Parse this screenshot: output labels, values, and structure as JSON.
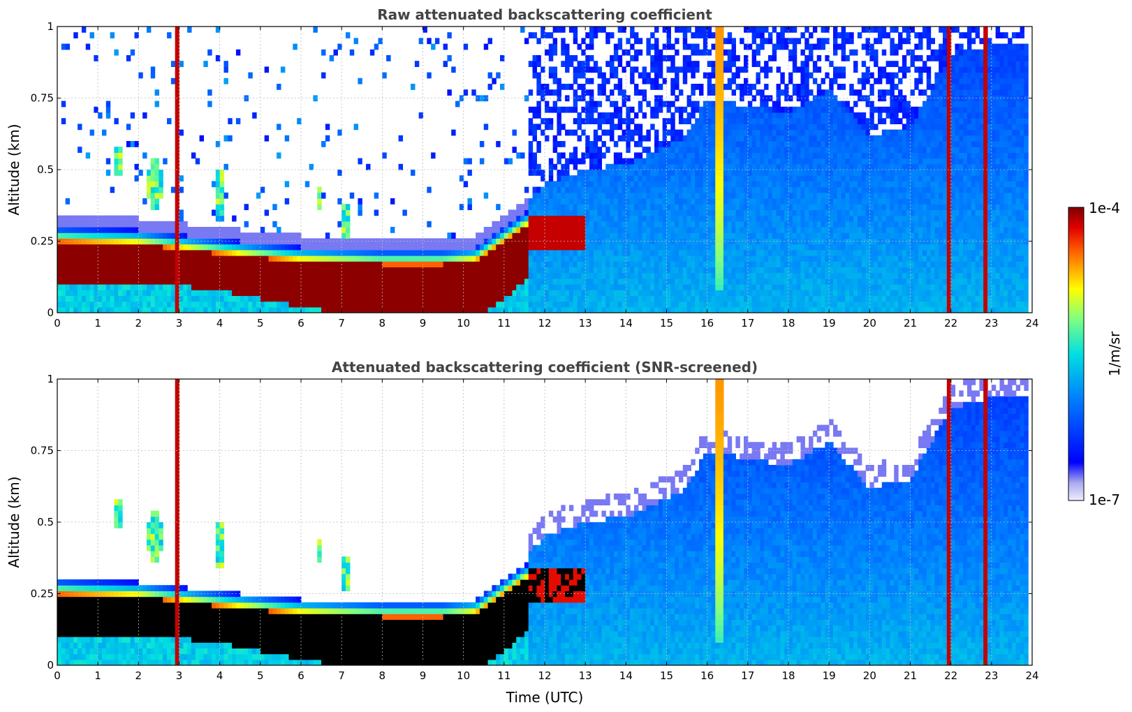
{
  "chart_data": [
    {
      "type": "heatmap",
      "title": "Raw attenuated backscattering coefficient",
      "ylabel": "Altitude (km)",
      "xlabel": "",
      "xlim": [
        0,
        24
      ],
      "ylim": [
        0,
        1
      ],
      "xticks": [
        "0",
        "1",
        "2",
        "3",
        "4",
        "5",
        "6",
        "7",
        "8",
        "9",
        "10",
        "11",
        "12",
        "13",
        "14",
        "15",
        "16",
        "17",
        "18",
        "19",
        "20",
        "21",
        "22",
        "23",
        "24"
      ],
      "yticks": [
        "0",
        "0.25",
        "0.5",
        "0.75",
        "1"
      ],
      "grid": true,
      "features": {
        "boundary_layer": [
          {
            "time": 0,
            "bottom_km": 0.1,
            "top_km": 0.23
          },
          {
            "time": 3,
            "bottom_km": 0.1,
            "top_km": 0.22
          },
          {
            "time": 5,
            "bottom_km": 0.05,
            "top_km": 0.18
          },
          {
            "time": 8,
            "bottom_km": 0.0,
            "top_km": 0.14
          },
          {
            "time": 10,
            "bottom_km": 0.0,
            "top_km": 0.15
          },
          {
            "time": 11.5,
            "bottom_km": 0.12,
            "top_km": 0.28
          }
        ],
        "precipitation_shafts_utc": [
          2.95,
          16.3,
          22.0,
          22.9
        ]
      }
    },
    {
      "type": "heatmap",
      "title": "Attenuated backscattering coefficient (SNR-screened)",
      "ylabel": "Altitude (km)",
      "xlabel": "Time (UTC)",
      "xlim": [
        0,
        24
      ],
      "ylim": [
        0,
        1
      ],
      "xticks": [
        "0",
        "1",
        "2",
        "3",
        "4",
        "5",
        "6",
        "7",
        "8",
        "9",
        "10",
        "11",
        "12",
        "13",
        "14",
        "15",
        "16",
        "17",
        "18",
        "19",
        "20",
        "21",
        "22",
        "23",
        "24"
      ],
      "yticks": [
        "0",
        "0.25",
        "0.5",
        "0.75",
        "1"
      ],
      "grid": true
    }
  ],
  "colorbar": {
    "label": "1/m/sr",
    "max_label": "1e-4",
    "min_label": "1e-7",
    "scale": "log",
    "colormap": "jet",
    "low_color": "#eeeeff",
    "high_color": "#7f0000"
  }
}
